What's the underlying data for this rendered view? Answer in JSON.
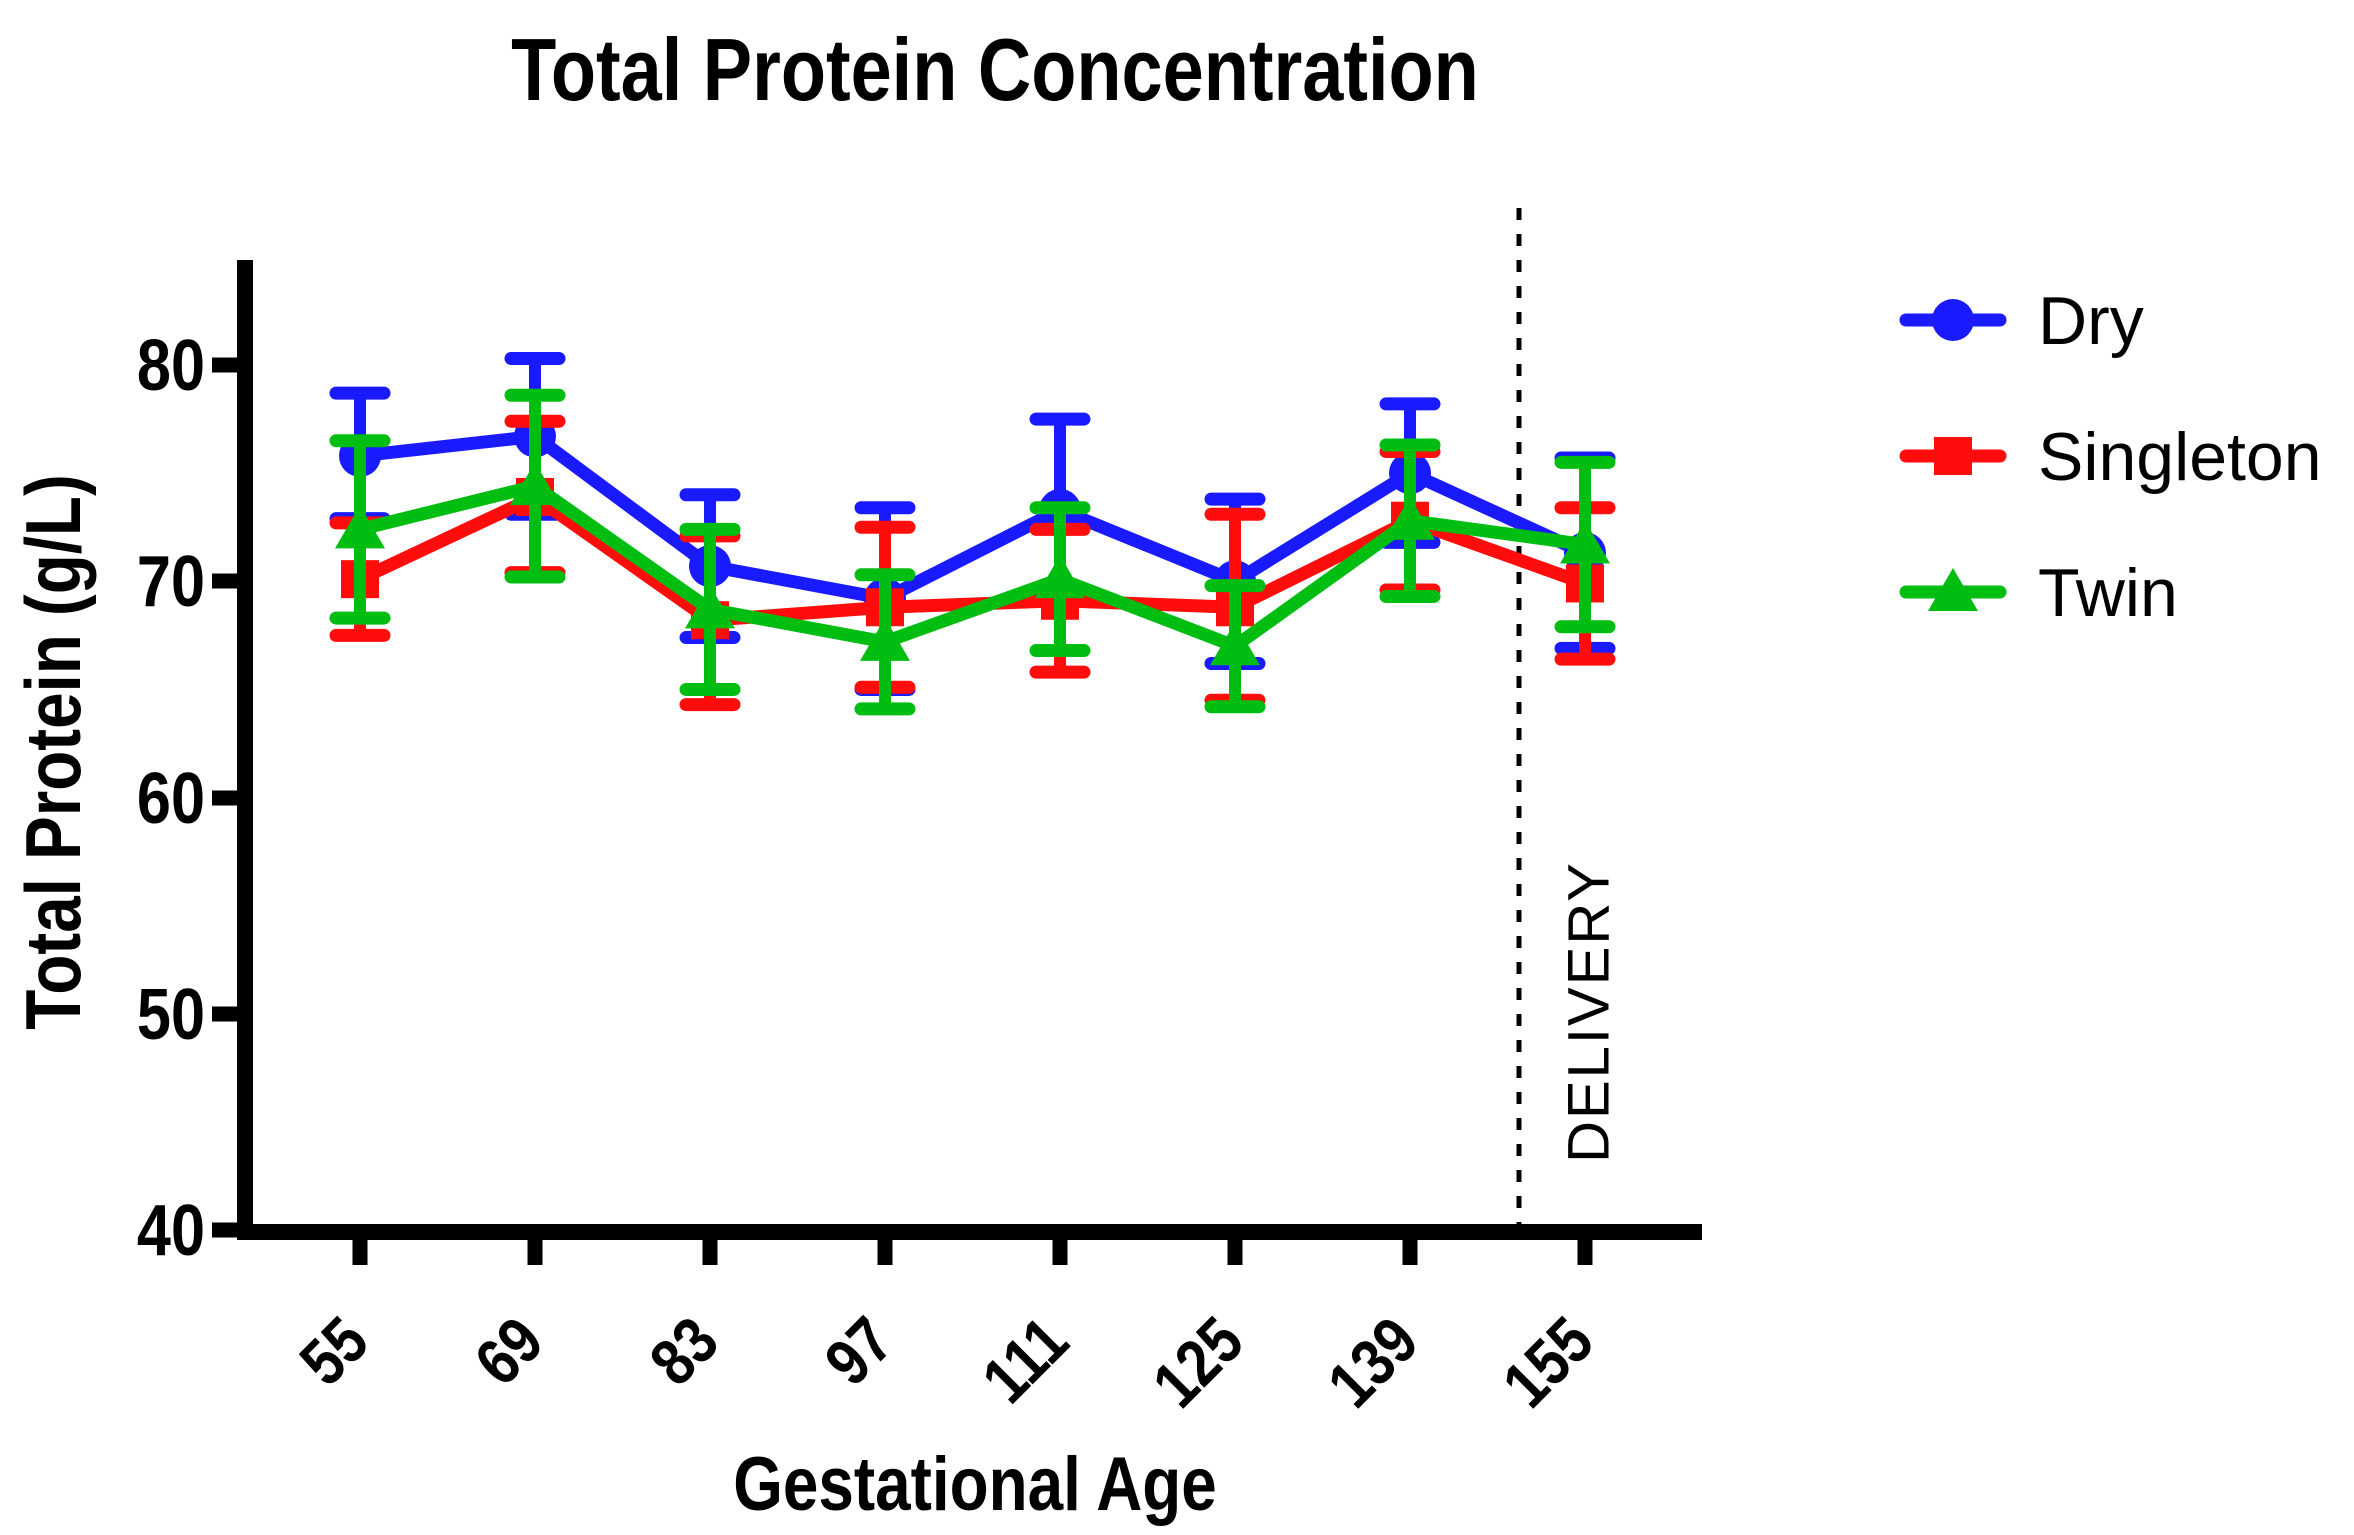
{
  "title": "Total Protein Concentration",
  "y_axis": {
    "label": "Total Protein (g/L)",
    "ticks": [
      "80",
      "70",
      "60",
      "50",
      "40"
    ]
  },
  "x_axis": {
    "label": "Gestational Age",
    "ticks": [
      "55",
      "69",
      "83",
      "97",
      "111",
      "125",
      "139",
      "155"
    ]
  },
  "annotations": {
    "delivery_label": "DELIVERY",
    "delivery_line_between": [
      "139",
      "155"
    ]
  },
  "legend": {
    "position": "right",
    "items": [
      "Dry",
      "Singleton",
      "Twin"
    ]
  },
  "chart_data": {
    "type": "line",
    "title": "Total Protein Concentration",
    "xlabel": "Gestational Age",
    "ylabel": "Total Protein (g/L)",
    "x_categories": [
      55,
      69,
      83,
      97,
      111,
      125,
      139,
      155
    ],
    "ylim": [
      40,
      85
    ],
    "y_ticks": [
      40,
      50,
      60,
      70,
      80
    ],
    "error_bars": "sd",
    "grid": false,
    "legend_position": "right",
    "series": [
      {
        "name": "Dry",
        "color": "#1a1aff",
        "marker": "circle",
        "means": [
          75.8,
          76.7,
          70.7,
          69.2,
          73.3,
          70.0,
          75.0,
          71.3
        ],
        "sd": [
          2.9,
          3.6,
          3.3,
          4.2,
          4.2,
          3.8,
          3.2,
          4.4
        ]
      },
      {
        "name": "Singleton",
        "color": "#ff0d0d",
        "marker": "square",
        "means": [
          70.1,
          73.9,
          68.2,
          68.8,
          69.1,
          68.8,
          72.8,
          69.9
        ],
        "sd": [
          2.6,
          3.5,
          3.9,
          3.7,
          3.3,
          4.3,
          3.2,
          3.5
        ]
      },
      {
        "name": "Twin",
        "color": "#00bd11",
        "marker": "triangle",
        "means": [
          72.4,
          74.4,
          68.7,
          67.2,
          70.1,
          67.0,
          72.8,
          71.7
        ],
        "sd": [
          4.1,
          4.2,
          3.7,
          3.1,
          3.3,
          2.8,
          3.5,
          3.8
        ]
      }
    ]
  }
}
